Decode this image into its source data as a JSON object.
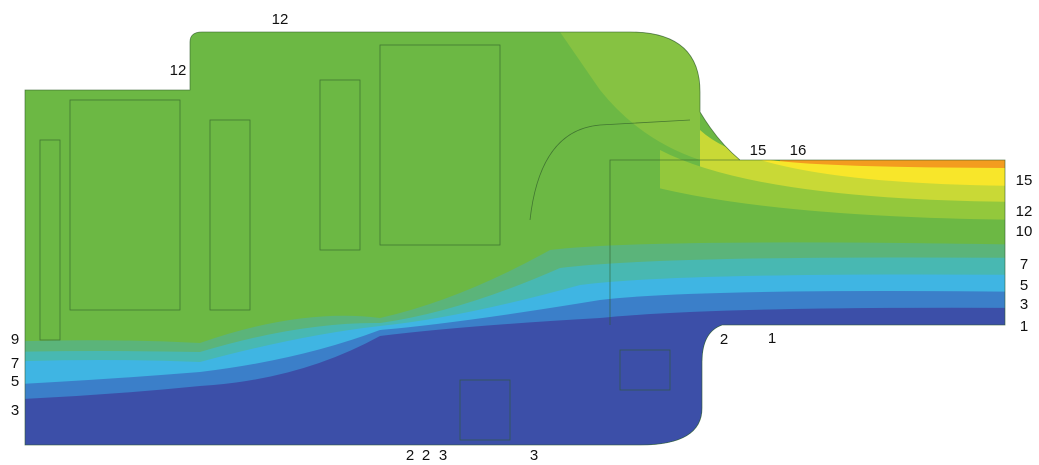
{
  "labels": [
    "12",
    "12",
    "15",
    "16",
    "15",
    "12",
    "10",
    "7",
    "5",
    "3",
    "1",
    "2",
    "1",
    "9",
    "7",
    "5",
    "3",
    "2",
    "2",
    "3",
    "3"
  ]
}
